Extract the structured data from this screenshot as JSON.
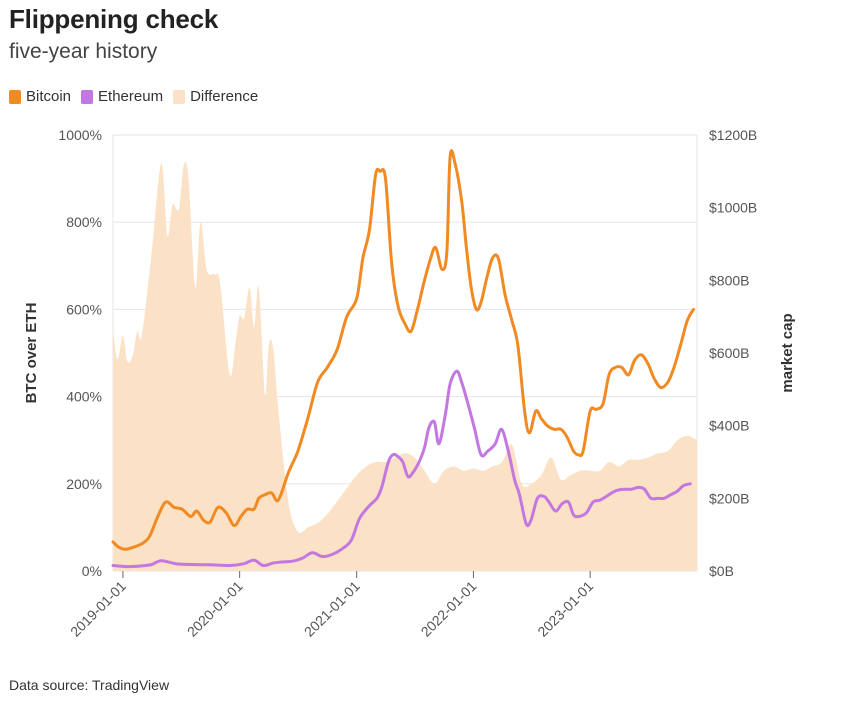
{
  "title": "Flippening check",
  "subtitle": "five-year history",
  "source": "Data source: TradingView",
  "legend": [
    {
      "label": "Bitcoin",
      "color": "#f18a23"
    },
    {
      "label": "Ethereum",
      "color": "#c377e0"
    },
    {
      "label": "Difference",
      "color": "#fbe1c6"
    }
  ],
  "chart_data": {
    "type": "line",
    "title": "Flippening check",
    "subtitle": "five-year history",
    "ylabel_left": "BTC over ETH",
    "ylabel_right": "market cap",
    "legend_position": "top-left",
    "grid": true,
    "ylim_left": [
      0,
      1000
    ],
    "ylim_right": [
      0,
      1200
    ],
    "x_range": [
      "2018-12-01",
      "2023-12-01"
    ],
    "left_ticks": [
      {
        "v": 0,
        "label": "0%"
      },
      {
        "v": 200,
        "label": "200%"
      },
      {
        "v": 400,
        "label": "400%"
      },
      {
        "v": 600,
        "label": "600%"
      },
      {
        "v": 800,
        "label": "800%"
      },
      {
        "v": 1000,
        "label": "1000%"
      }
    ],
    "right_ticks": [
      {
        "v": 0,
        "label": "$0B"
      },
      {
        "v": 200,
        "label": "$200B"
      },
      {
        "v": 400,
        "label": "$400B"
      },
      {
        "v": 600,
        "label": "$600B"
      },
      {
        "v": 800,
        "label": "$800B"
      },
      {
        "v": 1000,
        "label": "$1000B"
      },
      {
        "v": 1200,
        "label": "$1200B"
      }
    ],
    "x_ticks": [
      "2019-01-01",
      "2020-01-01",
      "2021-01-01",
      "2022-01-01",
      "2023-01-01"
    ],
    "series": [
      {
        "name": "Difference",
        "axis": "left",
        "kind": "area",
        "color": "#fbe1c6",
        "points": [
          [
            "2018-12-01",
            555
          ],
          [
            "2018-12-15",
            485
          ],
          [
            "2019-01-01",
            540
          ],
          [
            "2019-01-15",
            480
          ],
          [
            "2019-02-01",
            495
          ],
          [
            "2019-02-15",
            550
          ],
          [
            "2019-03-01",
            540
          ],
          [
            "2019-04-01",
            730
          ],
          [
            "2019-05-01",
            935
          ],
          [
            "2019-05-20",
            770
          ],
          [
            "2019-06-05",
            840
          ],
          [
            "2019-06-25",
            830
          ],
          [
            "2019-07-10",
            930
          ],
          [
            "2019-07-25",
            900
          ],
          [
            "2019-08-15",
            650
          ],
          [
            "2019-09-01",
            800
          ],
          [
            "2019-09-20",
            690
          ],
          [
            "2019-10-15",
            680
          ],
          [
            "2019-11-01",
            660
          ],
          [
            "2019-12-01",
            450
          ],
          [
            "2019-12-20",
            530
          ],
          [
            "2020-01-01",
            585
          ],
          [
            "2020-01-15",
            580
          ],
          [
            "2020-02-01",
            650
          ],
          [
            "2020-02-15",
            560
          ],
          [
            "2020-03-01",
            650
          ],
          [
            "2020-03-20",
            405
          ],
          [
            "2020-04-01",
            520
          ],
          [
            "2020-04-15",
            510
          ],
          [
            "2020-05-01",
            370
          ],
          [
            "2020-06-01",
            160
          ],
          [
            "2020-07-01",
            90
          ],
          [
            "2020-08-01",
            100
          ],
          [
            "2020-09-01",
            110
          ],
          [
            "2020-10-01",
            130
          ],
          [
            "2020-11-01",
            160
          ],
          [
            "2020-12-01",
            190
          ],
          [
            "2021-01-01",
            220
          ],
          [
            "2021-02-01",
            240
          ],
          [
            "2021-03-01",
            250
          ],
          [
            "2021-04-01",
            250
          ],
          [
            "2021-05-01",
            260
          ],
          [
            "2021-06-01",
            270
          ],
          [
            "2021-07-01",
            260
          ],
          [
            "2021-08-01",
            230
          ],
          [
            "2021-09-01",
            200
          ],
          [
            "2021-10-01",
            230
          ],
          [
            "2021-11-01",
            240
          ],
          [
            "2021-12-01",
            230
          ],
          [
            "2022-01-01",
            235
          ],
          [
            "2022-02-01",
            230
          ],
          [
            "2022-03-01",
            240
          ],
          [
            "2022-04-01",
            250
          ],
          [
            "2022-05-01",
            290
          ],
          [
            "2022-06-01",
            200
          ],
          [
            "2022-07-01",
            200
          ],
          [
            "2022-08-01",
            220
          ],
          [
            "2022-09-01",
            260
          ],
          [
            "2022-10-01",
            210
          ],
          [
            "2022-11-01",
            220
          ],
          [
            "2022-12-01",
            230
          ],
          [
            "2023-01-01",
            230
          ],
          [
            "2023-02-01",
            230
          ],
          [
            "2023-03-01",
            250
          ],
          [
            "2023-04-01",
            240
          ],
          [
            "2023-05-01",
            255
          ],
          [
            "2023-06-01",
            255
          ],
          [
            "2023-07-01",
            260
          ],
          [
            "2023-08-01",
            270
          ],
          [
            "2023-09-01",
            275
          ],
          [
            "2023-10-01",
            300
          ],
          [
            "2023-11-01",
            310
          ],
          [
            "2023-12-01",
            300
          ]
        ]
      },
      {
        "name": "Bitcoin",
        "axis": "right",
        "kind": "line",
        "color": "#f18a23",
        "points": [
          [
            "2018-12-01",
            80
          ],
          [
            "2018-12-20",
            65
          ],
          [
            "2019-01-10",
            60
          ],
          [
            "2019-02-01",
            65
          ],
          [
            "2019-03-01",
            75
          ],
          [
            "2019-03-25",
            95
          ],
          [
            "2019-04-20",
            150
          ],
          [
            "2019-05-15",
            190
          ],
          [
            "2019-06-10",
            175
          ],
          [
            "2019-07-05",
            170
          ],
          [
            "2019-08-01",
            150
          ],
          [
            "2019-08-20",
            165
          ],
          [
            "2019-09-10",
            140
          ],
          [
            "2019-10-01",
            135
          ],
          [
            "2019-10-25",
            175
          ],
          [
            "2019-11-20",
            160
          ],
          [
            "2019-12-15",
            125
          ],
          [
            "2020-01-05",
            150
          ],
          [
            "2020-01-25",
            170
          ],
          [
            "2020-02-15",
            170
          ],
          [
            "2020-03-01",
            200
          ],
          [
            "2020-03-20",
            210
          ],
          [
            "2020-04-10",
            215
          ],
          [
            "2020-05-01",
            195
          ],
          [
            "2020-06-01",
            270
          ],
          [
            "2020-07-01",
            330
          ],
          [
            "2020-08-01",
            420
          ],
          [
            "2020-09-01",
            520
          ],
          [
            "2020-10-01",
            560
          ],
          [
            "2020-11-01",
            610
          ],
          [
            "2020-12-01",
            700
          ],
          [
            "2021-01-01",
            750
          ],
          [
            "2021-01-20",
            860
          ],
          [
            "2021-02-10",
            940
          ],
          [
            "2021-03-01",
            1090
          ],
          [
            "2021-03-15",
            1100
          ],
          [
            "2021-04-01",
            1080
          ],
          [
            "2021-04-20",
            850
          ],
          [
            "2021-05-10",
            730
          ],
          [
            "2021-06-01",
            680
          ],
          [
            "2021-06-20",
            660
          ],
          [
            "2021-07-10",
            720
          ],
          [
            "2021-08-01",
            800
          ],
          [
            "2021-08-20",
            860
          ],
          [
            "2021-09-05",
            890
          ],
          [
            "2021-09-25",
            830
          ],
          [
            "2021-10-10",
            880
          ],
          [
            "2021-10-20",
            1140
          ],
          [
            "2021-11-05",
            1120
          ],
          [
            "2021-11-25",
            1020
          ],
          [
            "2021-12-10",
            890
          ],
          [
            "2021-12-25",
            780
          ],
          [
            "2022-01-10",
            720
          ],
          [
            "2022-01-25",
            740
          ],
          [
            "2022-02-10",
            800
          ],
          [
            "2022-03-01",
            860
          ],
          [
            "2022-03-20",
            860
          ],
          [
            "2022-04-10",
            760
          ],
          [
            "2022-05-01",
            690
          ],
          [
            "2022-05-20",
            620
          ],
          [
            "2022-06-10",
            440
          ],
          [
            "2022-06-25",
            380
          ],
          [
            "2022-07-15",
            440
          ],
          [
            "2022-08-01",
            420
          ],
          [
            "2022-08-20",
            400
          ],
          [
            "2022-09-10",
            390
          ],
          [
            "2022-10-01",
            390
          ],
          [
            "2022-10-20",
            370
          ],
          [
            "2022-11-10",
            330
          ],
          [
            "2022-11-25",
            320
          ],
          [
            "2022-12-10",
            330
          ],
          [
            "2023-01-01",
            440
          ],
          [
            "2023-01-20",
            445
          ],
          [
            "2023-02-10",
            460
          ],
          [
            "2023-03-01",
            540
          ],
          [
            "2023-03-20",
            560
          ],
          [
            "2023-04-10",
            560
          ],
          [
            "2023-05-01",
            540
          ],
          [
            "2023-05-20",
            580
          ],
          [
            "2023-06-10",
            595
          ],
          [
            "2023-07-01",
            570
          ],
          [
            "2023-07-20",
            530
          ],
          [
            "2023-08-10",
            505
          ],
          [
            "2023-09-01",
            520
          ],
          [
            "2023-09-20",
            560
          ],
          [
            "2023-10-10",
            620
          ],
          [
            "2023-11-01",
            690
          ],
          [
            "2023-11-20",
            720
          ]
        ]
      },
      {
        "name": "Ethereum",
        "axis": "right",
        "kind": "line",
        "color": "#c377e0",
        "points": [
          [
            "2018-12-01",
            15
          ],
          [
            "2019-01-15",
            12
          ],
          [
            "2019-03-01",
            14
          ],
          [
            "2019-04-01",
            18
          ],
          [
            "2019-05-01",
            28
          ],
          [
            "2019-06-15",
            20
          ],
          [
            "2019-08-01",
            18
          ],
          [
            "2019-10-01",
            17
          ],
          [
            "2019-12-01",
            15
          ],
          [
            "2020-01-15",
            20
          ],
          [
            "2020-02-15",
            30
          ],
          [
            "2020-03-15",
            15
          ],
          [
            "2020-04-15",
            22
          ],
          [
            "2020-05-15",
            25
          ],
          [
            "2020-06-15",
            27
          ],
          [
            "2020-07-15",
            35
          ],
          [
            "2020-08-15",
            50
          ],
          [
            "2020-09-15",
            40
          ],
          [
            "2020-10-15",
            45
          ],
          [
            "2020-11-15",
            60
          ],
          [
            "2020-12-15",
            85
          ],
          [
            "2021-01-10",
            145
          ],
          [
            "2021-02-10",
            180
          ],
          [
            "2021-03-05",
            200
          ],
          [
            "2021-03-20",
            230
          ],
          [
            "2021-04-10",
            300
          ],
          [
            "2021-04-25",
            320
          ],
          [
            "2021-05-10",
            315
          ],
          [
            "2021-05-25",
            300
          ],
          [
            "2021-06-10",
            260
          ],
          [
            "2021-06-25",
            270
          ],
          [
            "2021-07-15",
            300
          ],
          [
            "2021-08-01",
            340
          ],
          [
            "2021-08-15",
            395
          ],
          [
            "2021-09-01",
            410
          ],
          [
            "2021-09-15",
            350
          ],
          [
            "2021-10-05",
            430
          ],
          [
            "2021-10-20",
            515
          ],
          [
            "2021-11-10",
            550
          ],
          [
            "2021-11-25",
            520
          ],
          [
            "2021-12-15",
            460
          ],
          [
            "2022-01-05",
            390
          ],
          [
            "2022-01-25",
            320
          ],
          [
            "2022-02-15",
            330
          ],
          [
            "2022-03-10",
            350
          ],
          [
            "2022-03-30",
            390
          ],
          [
            "2022-04-20",
            330
          ],
          [
            "2022-05-10",
            250
          ],
          [
            "2022-05-25",
            210
          ],
          [
            "2022-06-15",
            130
          ],
          [
            "2022-06-30",
            140
          ],
          [
            "2022-07-20",
            200
          ],
          [
            "2022-08-10",
            205
          ],
          [
            "2022-08-25",
            190
          ],
          [
            "2022-09-15",
            165
          ],
          [
            "2022-10-05",
            185
          ],
          [
            "2022-10-25",
            190
          ],
          [
            "2022-11-10",
            155
          ],
          [
            "2022-11-25",
            150
          ],
          [
            "2022-12-20",
            160
          ],
          [
            "2023-01-10",
            190
          ],
          [
            "2023-02-01",
            195
          ],
          [
            "2023-02-20",
            205
          ],
          [
            "2023-03-20",
            220
          ],
          [
            "2023-04-15",
            225
          ],
          [
            "2023-05-10",
            225
          ],
          [
            "2023-06-01",
            230
          ],
          [
            "2023-06-20",
            225
          ],
          [
            "2023-07-10",
            200
          ],
          [
            "2023-08-01",
            200
          ],
          [
            "2023-08-20",
            200
          ],
          [
            "2023-09-10",
            210
          ],
          [
            "2023-10-01",
            220
          ],
          [
            "2023-10-20",
            235
          ],
          [
            "2023-11-10",
            240
          ]
        ]
      }
    ]
  }
}
